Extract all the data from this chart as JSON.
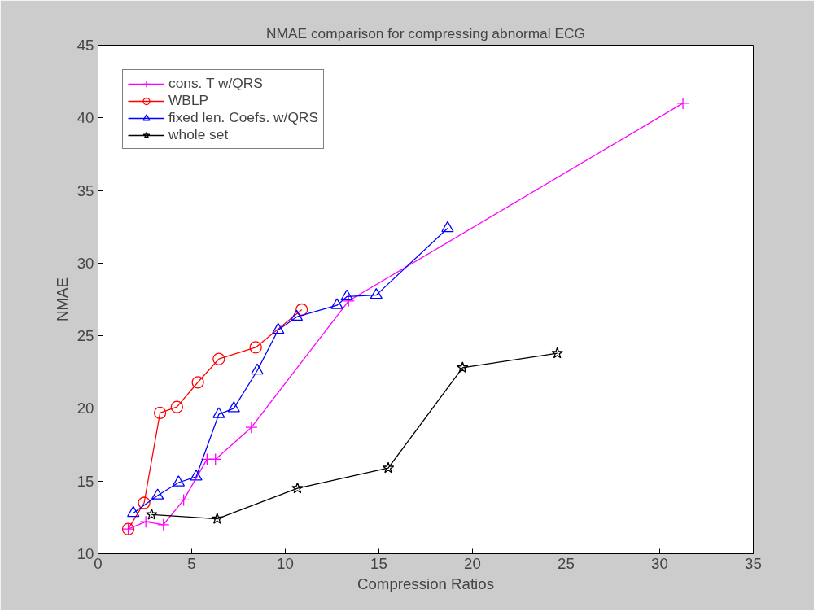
{
  "chart_data": {
    "type": "line",
    "title": "NMAE comparison for compressing abnormal ECG",
    "xlabel": "Compression Ratios",
    "ylabel": "NMAE",
    "xlim": [
      0,
      35
    ],
    "ylim": [
      10,
      45
    ],
    "xticks": [
      0,
      5,
      10,
      15,
      20,
      25,
      30,
      35
    ],
    "yticks": [
      10,
      15,
      20,
      25,
      30,
      35,
      40,
      45
    ],
    "grid": false,
    "legend": "top left",
    "series": [
      {
        "name": "cons. T w/QRS",
        "color": "#ff00ff",
        "marker": "cross",
        "x": [
          1.61,
          2.55,
          3.49,
          4.57,
          5.82,
          6.27,
          8.19,
          13.38,
          31.24
        ],
        "values": [
          11.7,
          12.2,
          12.0,
          13.7,
          16.5,
          16.5,
          18.7,
          27.4,
          41.0
        ]
      },
      {
        "name": "WBLP",
        "color": "#ff0000",
        "marker": "circle",
        "x": [
          1.61,
          2.46,
          3.31,
          4.21,
          5.33,
          6.45,
          8.42,
          10.88
        ],
        "values": [
          11.7,
          13.5,
          19.7,
          20.1,
          21.8,
          23.4,
          24.2,
          26.8
        ]
      },
      {
        "name": "fixed len. Coefs. w/QRS",
        "color": "#0000ff",
        "marker": "triangle",
        "x": [
          1.88,
          3.18,
          4.3,
          5.24,
          6.45,
          7.25,
          8.5,
          9.62,
          10.61,
          12.76,
          13.29,
          14.86,
          18.67
        ],
        "values": [
          12.8,
          14.0,
          14.9,
          15.3,
          19.6,
          20.0,
          22.6,
          25.4,
          26.3,
          27.1,
          27.7,
          27.8,
          32.4
        ]
      },
      {
        "name": "whole set",
        "color": "#000000",
        "marker": "star",
        "x": [
          2.86,
          6.36,
          10.65,
          15.5,
          19.47,
          24.53
        ],
        "values": [
          12.7,
          12.4,
          14.5,
          15.9,
          22.8,
          23.8
        ]
      }
    ]
  }
}
